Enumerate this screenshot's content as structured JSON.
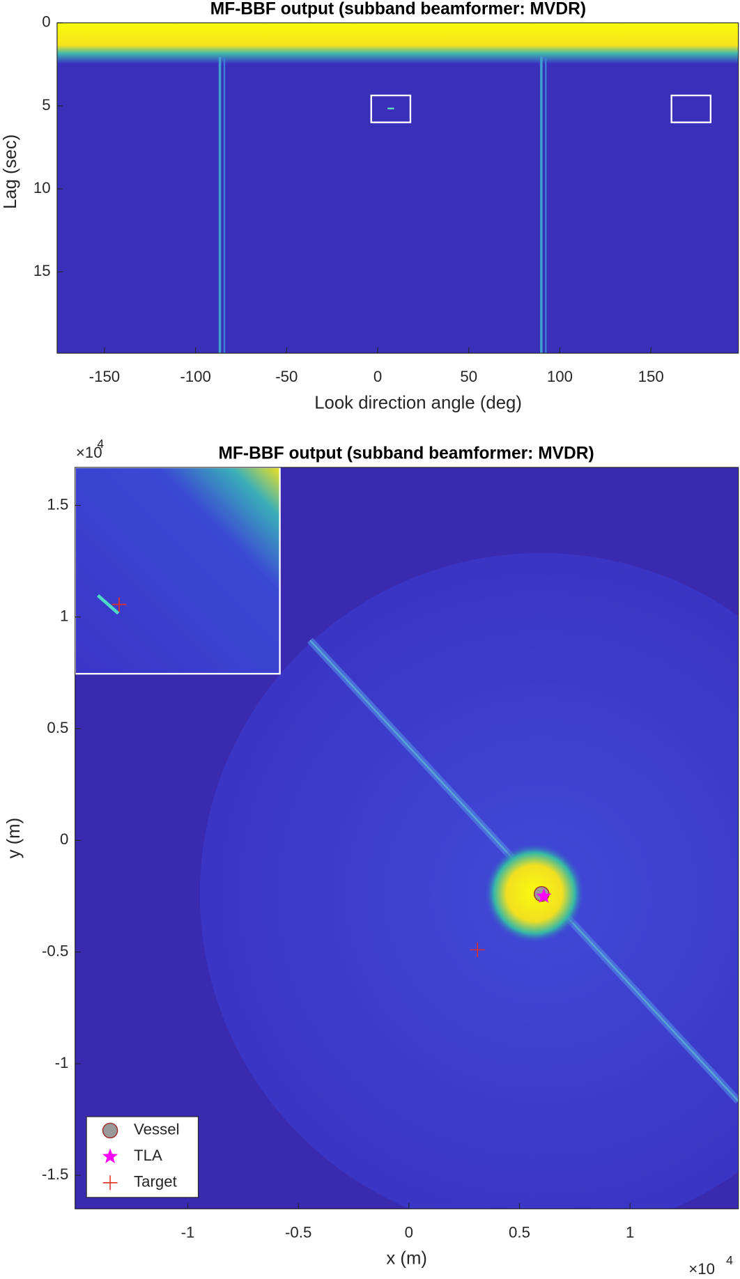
{
  "chart_data": [
    {
      "type": "heatmap",
      "title": "MF-BBF output (subband beamformer: MVDR)",
      "x_label": "Look direction angle (deg)",
      "y_label": "Lag (sec)",
      "xlim": [
        -176,
        198
      ],
      "ylim": [
        0,
        19.9
      ],
      "y_reversed": true,
      "xticks": [
        -150,
        -100,
        -50,
        0,
        50,
        100,
        150
      ],
      "yticks": [
        0,
        5,
        10,
        15
      ]
    },
    {
      "type": "heatmap",
      "title": "MF-BBF output (subband beamformer: MVDR)",
      "x_label": "x (m)",
      "y_label": "y (m)",
      "x_multiplier": {
        "base": "×10",
        "exponent": "4"
      },
      "y_multiplier": {
        "base": "×10",
        "exponent": "4"
      },
      "xlim": [
        -15100,
        14900
      ],
      "ylim": [
        -16500,
        16700
      ],
      "xticks": [
        {
          "value": -10000,
          "label": "-1"
        },
        {
          "value": -5000,
          "label": "-0.5"
        },
        0,
        {
          "value": 5000,
          "label": "0.5"
        },
        {
          "value": 10000,
          "label": "1"
        }
      ],
      "yticks": [
        {
          "value": -15000,
          "label": "-1.5"
        },
        {
          "value": -10000,
          "label": "-1"
        },
        {
          "value": -5000,
          "label": "-0.5"
        },
        0,
        {
          "value": 5000,
          "label": "0.5"
        },
        {
          "value": 10000,
          "label": "1"
        },
        {
          "value": 15000,
          "label": "1.5"
        }
      ],
      "legend": "lower left",
      "series": [
        {
          "name": "Vessel",
          "marker": "circle",
          "color": "#999999",
          "x": [
            6000
          ],
          "y": [
            -2400
          ]
        },
        {
          "name": "TLA",
          "marker": "star",
          "color": "#ff00ff",
          "x": [
            6100
          ],
          "y": [
            -2500
          ]
        },
        {
          "name": "Target",
          "marker": "plus",
          "color": "#e0302a",
          "x": [
            3100
          ],
          "y": [
            -4900
          ]
        }
      ]
    }
  ]
}
